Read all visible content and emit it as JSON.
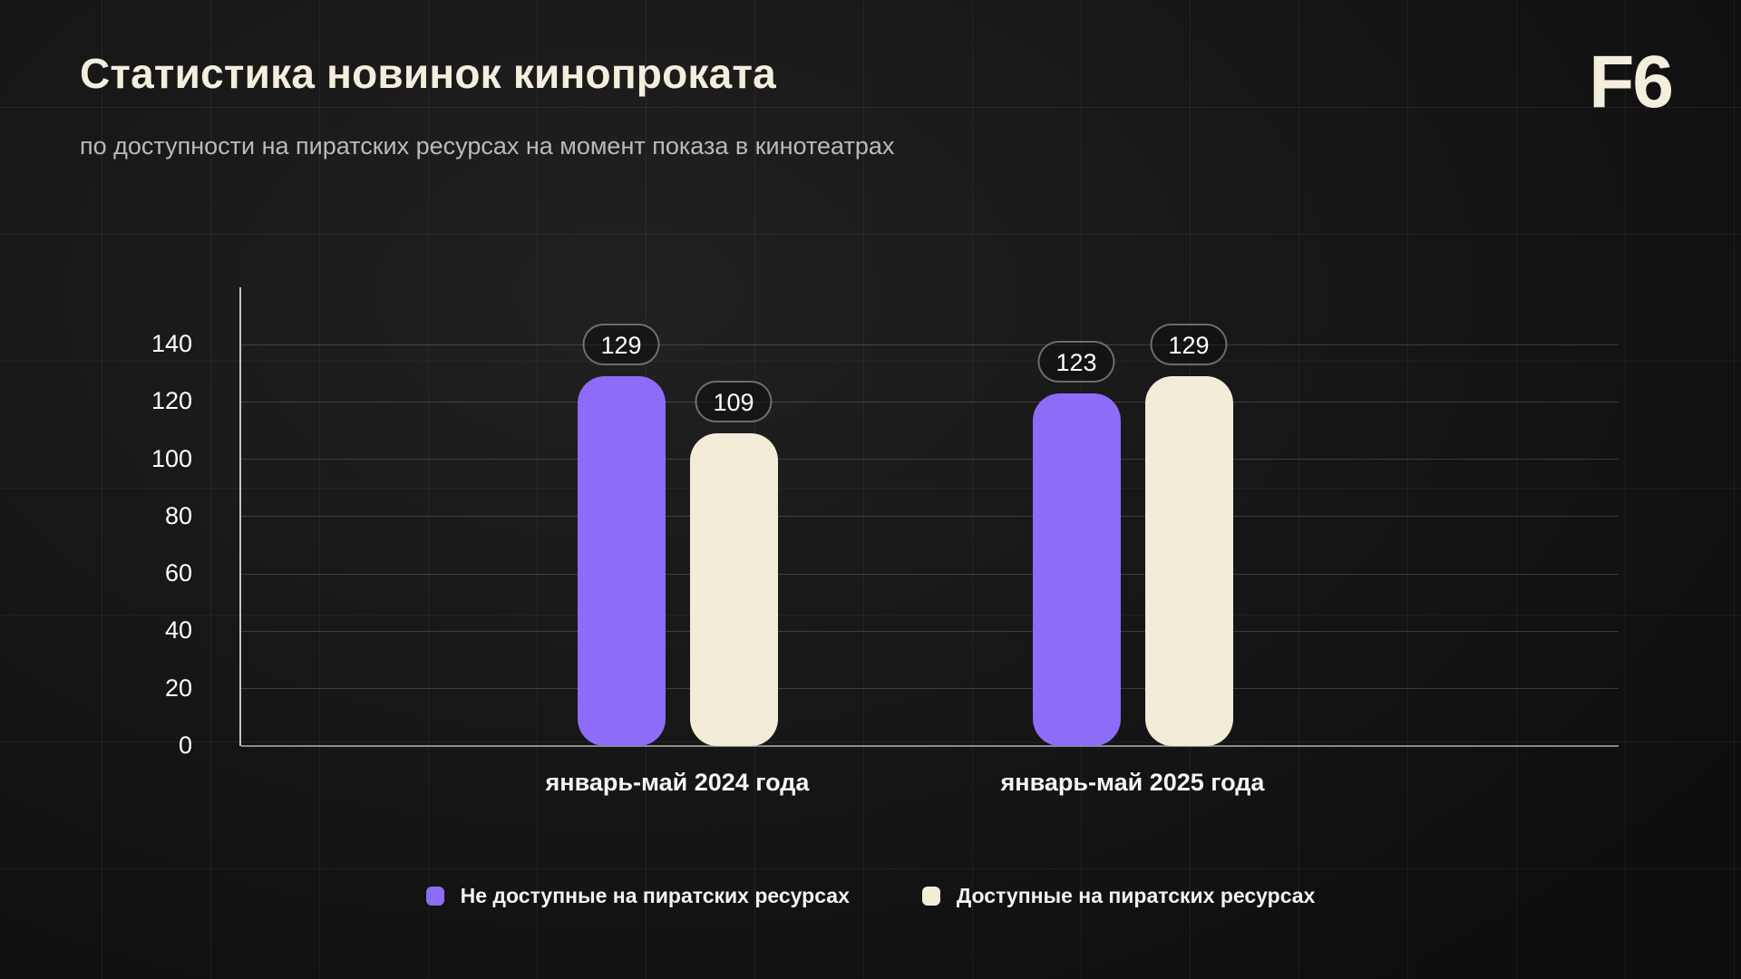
{
  "header": {
    "title": "Статистика новинок кинопроката",
    "subtitle": "по доступности на пиратских ресурсах на момент показа в кинотеатрах",
    "logo": "F6"
  },
  "colors": {
    "accent_purple": "#8D6CF7",
    "accent_cream": "#F2ECD9",
    "title_cream": "#F3EEDE",
    "subtitle_gray": "#B9BABD",
    "background": "#161616"
  },
  "chart_data": {
    "type": "bar",
    "title": "Статистика новинок кинопроката",
    "subtitle": "по доступности на пиратских ресурсах на момент показа в кинотеатрах",
    "categories": [
      "январь-май 2024 года",
      "январь-май 2025 года"
    ],
    "series": [
      {
        "name": "Не доступные на пиратских ресурсах",
        "color": "#8D6CF7",
        "values": [
          129,
          123
        ]
      },
      {
        "name": "Доступные на пиратских ресурсах",
        "color": "#F2ECD9",
        "values": [
          109,
          129
        ]
      }
    ],
    "y_ticks": [
      0,
      20,
      40,
      60,
      80,
      100,
      120,
      140
    ],
    "ylim": [
      0,
      160
    ],
    "grid": true,
    "legend_position": "bottom",
    "value_labels": true
  }
}
